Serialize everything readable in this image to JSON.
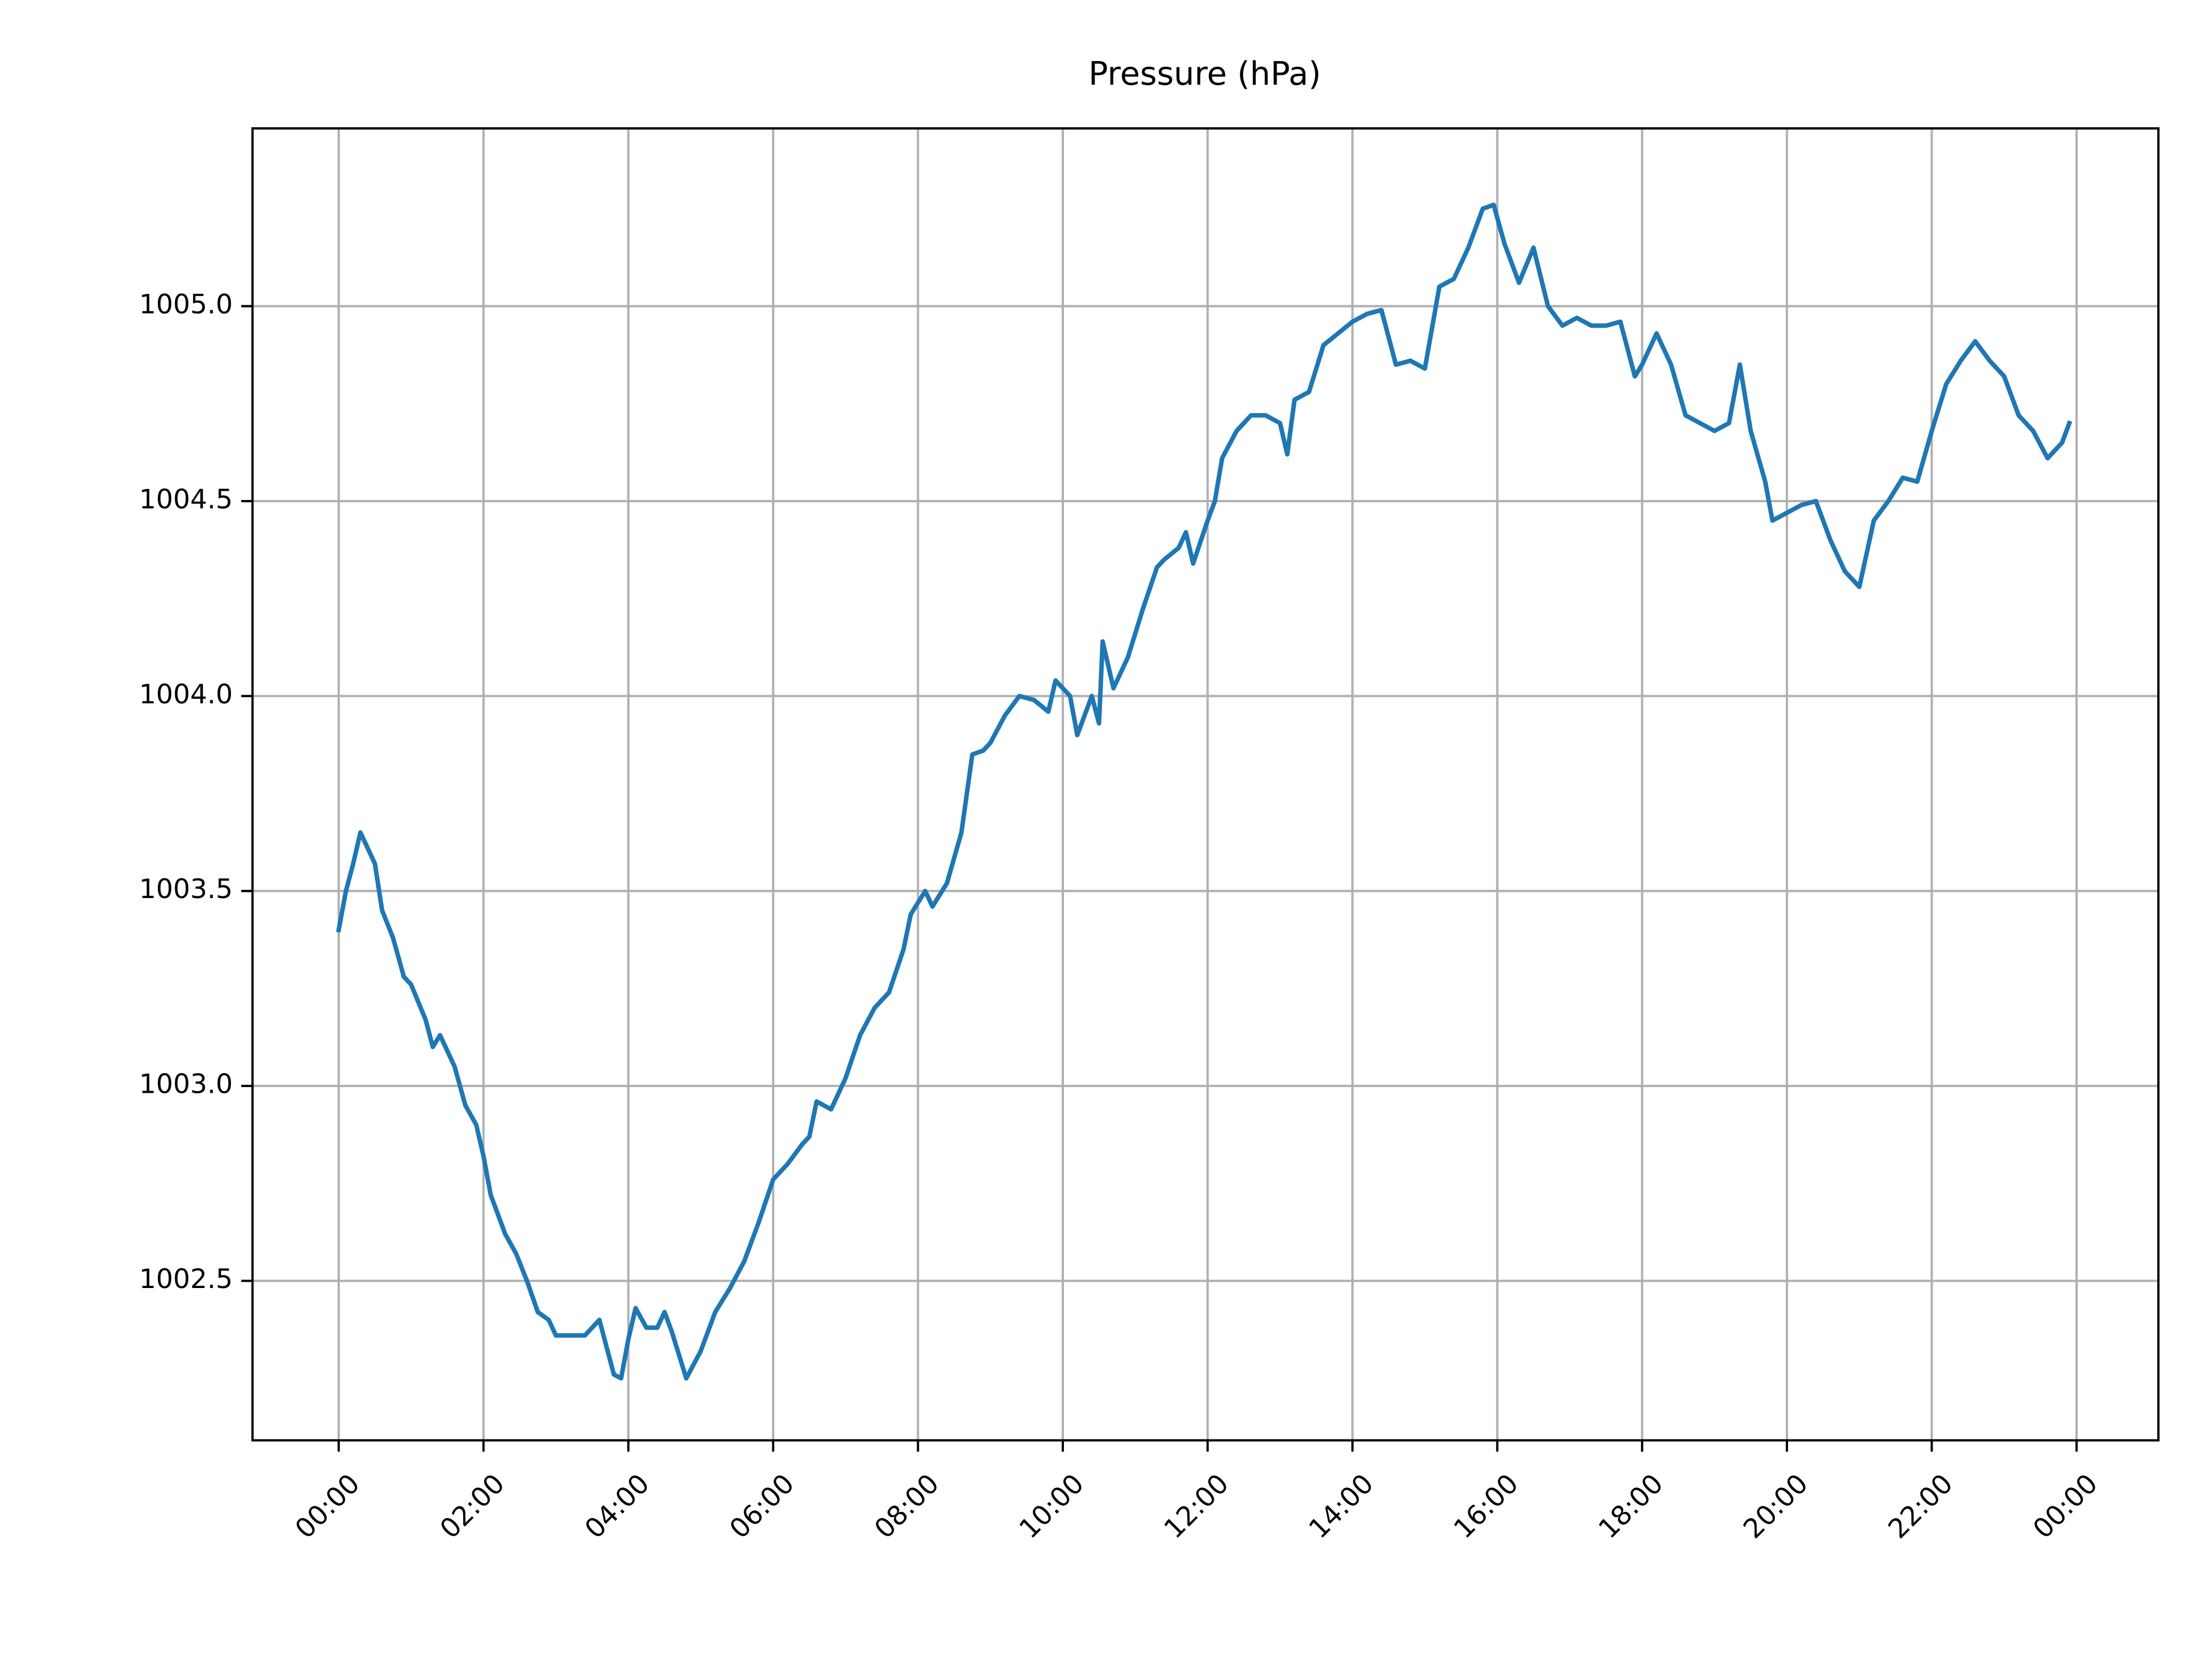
{
  "chart_data": {
    "type": "line",
    "title": "Pressure (hPa)",
    "grid": true,
    "xlim": [
      -1.19,
      25.13
    ],
    "ylim": [
      1002.091,
      1005.456
    ],
    "xticks": [
      {
        "value": 0,
        "label": "00:00"
      },
      {
        "value": 2,
        "label": "02:00"
      },
      {
        "value": 4,
        "label": "04:00"
      },
      {
        "value": 6,
        "label": "06:00"
      },
      {
        "value": 8,
        "label": "08:00"
      },
      {
        "value": 10,
        "label": "10:00"
      },
      {
        "value": 12,
        "label": "12:00"
      },
      {
        "value": 14,
        "label": "14:00"
      },
      {
        "value": 16,
        "label": "16:00"
      },
      {
        "value": 18,
        "label": "18:00"
      },
      {
        "value": 20,
        "label": "20:00"
      },
      {
        "value": 22,
        "label": "22:00"
      },
      {
        "value": 24,
        "label": "00:00"
      }
    ],
    "yticks": [
      1002.5,
      {
        "value": 1003,
        "label": "1003.0"
      },
      1003.5,
      {
        "value": 1004,
        "label": "1004.0"
      },
      1004.5,
      {
        "value": 1005,
        "label": "1005.0"
      }
    ],
    "x": [
      0.0,
      0.1,
      0.2,
      0.3,
      0.5,
      0.6,
      0.75,
      0.9,
      1.0,
      1.2,
      1.3,
      1.4,
      1.6,
      1.75,
      1.9,
      2.0,
      2.1,
      2.3,
      2.45,
      2.6,
      2.75,
      2.9,
      3.0,
      3.2,
      3.4,
      3.6,
      3.7,
      3.8,
      3.9,
      4.0,
      4.1,
      4.25,
      4.4,
      4.5,
      4.6,
      4.8,
      5.0,
      5.2,
      5.4,
      5.6,
      5.8,
      6.0,
      6.2,
      6.4,
      6.5,
      6.6,
      6.8,
      7.0,
      7.2,
      7.4,
      7.6,
      7.8,
      7.9,
      8.1,
      8.2,
      8.4,
      8.6,
      8.75,
      8.9,
      9.0,
      9.2,
      9.4,
      9.6,
      9.8,
      9.9,
      10.1,
      10.2,
      10.4,
      10.5,
      10.55,
      10.7,
      10.9,
      11.1,
      11.3,
      11.4,
      11.6,
      11.7,
      11.8,
      12.0,
      12.1,
      12.2,
      12.4,
      12.6,
      12.8,
      13.0,
      13.1,
      13.2,
      13.4,
      13.6,
      13.8,
      14.0,
      14.2,
      14.4,
      14.6,
      14.8,
      15.0,
      15.2,
      15.4,
      15.6,
      15.8,
      15.95,
      16.1,
      16.3,
      16.5,
      16.7,
      16.9,
      17.1,
      17.3,
      17.5,
      17.7,
      17.9,
      18.0,
      18.2,
      18.4,
      18.6,
      18.8,
      19.0,
      19.2,
      19.35,
      19.5,
      19.7,
      19.8,
      20.0,
      20.2,
      20.4,
      20.6,
      20.8,
      21.0,
      21.2,
      21.4,
      21.6,
      21.8,
      22.0,
      22.2,
      22.4,
      22.6,
      22.8,
      23.0,
      23.2,
      23.4,
      23.6,
      23.8,
      23.9
    ],
    "series": [
      {
        "name": "Pressure",
        "color": "#1f77b4",
        "values": [
          1003.4,
          1003.5,
          1003.57,
          1003.65,
          1003.57,
          1003.45,
          1003.38,
          1003.28,
          1003.26,
          1003.17,
          1003.1,
          1003.13,
          1003.05,
          1002.95,
          1002.9,
          1002.82,
          1002.72,
          1002.62,
          1002.57,
          1002.5,
          1002.42,
          1002.4,
          1002.36,
          1002.36,
          1002.36,
          1002.4,
          1002.33,
          1002.26,
          1002.25,
          1002.35,
          1002.43,
          1002.38,
          1002.38,
          1002.42,
          1002.37,
          1002.25,
          1002.32,
          1002.42,
          1002.48,
          1002.55,
          1002.65,
          1002.76,
          1002.8,
          1002.85,
          1002.87,
          1002.96,
          1002.94,
          1003.02,
          1003.13,
          1003.2,
          1003.24,
          1003.35,
          1003.44,
          1003.5,
          1003.46,
          1003.52,
          1003.65,
          1003.85,
          1003.86,
          1003.88,
          1003.95,
          1004.0,
          1003.99,
          1003.96,
          1004.04,
          1004.0,
          1003.9,
          1004.0,
          1003.93,
          1004.14,
          1004.02,
          1004.1,
          1004.22,
          1004.33,
          1004.35,
          1004.38,
          1004.42,
          1004.34,
          1004.45,
          1004.5,
          1004.61,
          1004.68,
          1004.72,
          1004.72,
          1004.7,
          1004.62,
          1004.76,
          1004.78,
          1004.9,
          1004.93,
          1004.96,
          1004.98,
          1004.99,
          1004.85,
          1004.86,
          1004.84,
          1005.05,
          1005.07,
          1005.15,
          1005.25,
          1005.26,
          1005.16,
          1005.06,
          1005.15,
          1005.0,
          1004.95,
          1004.97,
          1004.95,
          1004.95,
          1004.96,
          1004.82,
          1004.85,
          1004.93,
          1004.85,
          1004.72,
          1004.7,
          1004.68,
          1004.7,
          1004.85,
          1004.68,
          1004.55,
          1004.45,
          1004.47,
          1004.49,
          1004.5,
          1004.4,
          1004.32,
          1004.28,
          1004.45,
          1004.5,
          1004.56,
          1004.55,
          1004.68,
          1004.8,
          1004.86,
          1004.91,
          1004.86,
          1004.82,
          1004.72,
          1004.68,
          1004.61,
          1004.65,
          1004.7
        ]
      }
    ]
  }
}
